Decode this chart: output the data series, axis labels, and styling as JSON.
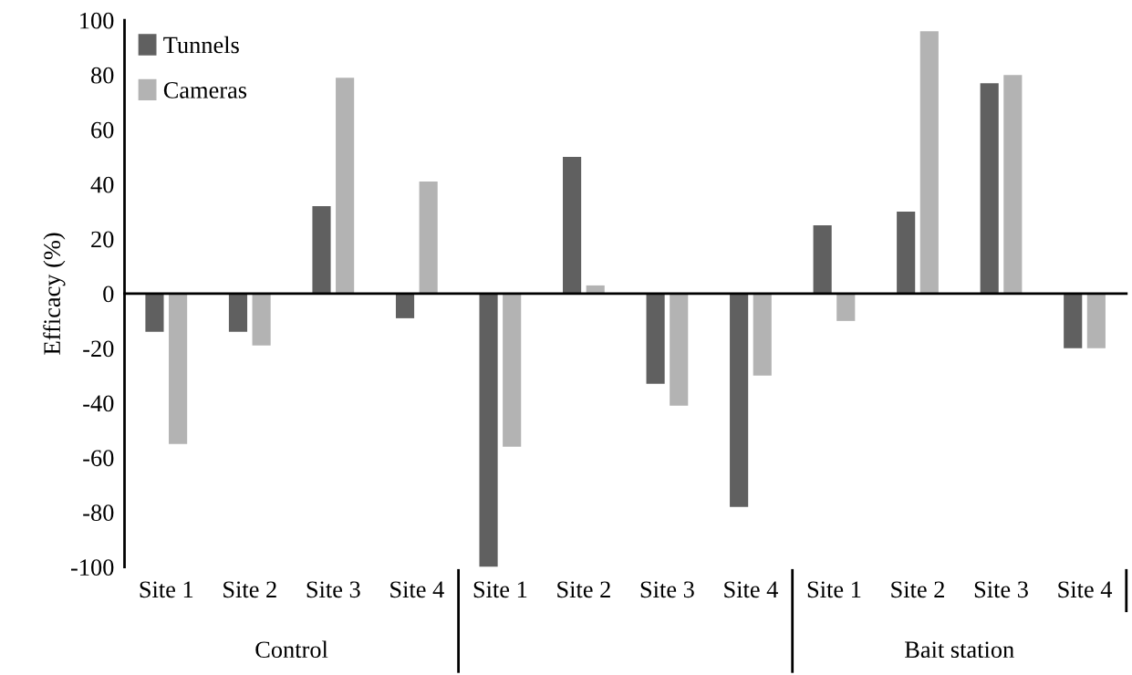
{
  "chart_data": {
    "type": "bar",
    "ylabel": "Efficacy (%)",
    "categories": [
      "Site 1",
      "Site 2",
      "Site 3",
      "Site 4",
      "Site 1",
      "Site 2",
      "Site 3",
      "Site 4",
      "Site 1",
      "Site 2",
      "Site 3",
      "Site 4"
    ],
    "annotations": [
      "Control",
      "Bait station"
    ],
    "series": [
      {
        "name": "Tunnels",
        "color": "#606060",
        "values": [
          -14,
          -14,
          32,
          -9,
          -100,
          50,
          -33,
          -78,
          25,
          30,
          77,
          -20
        ]
      },
      {
        "name": "Cameras",
        "color": "#b3b3b3",
        "values": [
          -55,
          -19,
          79,
          41,
          -56,
          3,
          -41,
          -30,
          -10,
          96,
          80,
          -20
        ]
      }
    ],
    "ylim": [
      -100,
      100
    ],
    "yticks": [
      -100,
      -80,
      -60,
      -40,
      -20,
      0,
      20,
      40,
      60,
      80,
      100
    ],
    "legend": "top left"
  }
}
